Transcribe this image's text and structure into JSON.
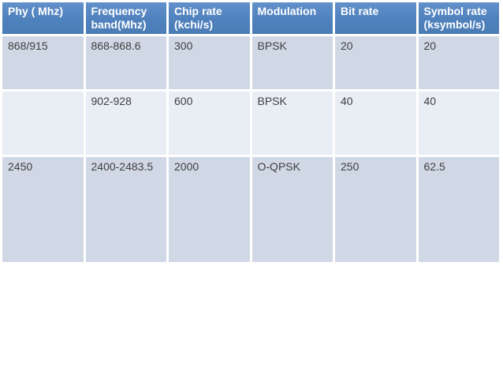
{
  "slide": {
    "background": "#ffffff"
  },
  "table": {
    "name": "phy-parameters-table",
    "style": {
      "header_bg": "#4f81bd",
      "header_text": "#ffffff",
      "band_odd": "#d0d7e5",
      "band_even": "#e9edf4",
      "body_text": "#404040",
      "separator": "#ffffff"
    },
    "columns": [
      "Phy ( Mhz)",
      "Frequency\nband(Mhz)",
      "Chip rate\n(kchi/s)",
      "Modulation",
      "Bit rate",
      "Symbol rate\n(ksymbol/s)"
    ],
    "rows": [
      {
        "band": "odd",
        "cells": [
          "868/915",
          "868-868.6",
          "300",
          "BPSK",
          "20",
          "20"
        ]
      },
      {
        "band": "even",
        "cells": [
          "",
          "902-928",
          "600",
          "BPSK",
          "40",
          "40"
        ]
      },
      {
        "band": "odd",
        "cells": [
          "2450",
          "2400-2483.5",
          "2000",
          "O-QPSK",
          "250",
          "62.5"
        ]
      }
    ]
  },
  "chart_data": {
    "type": "table",
    "columns": [
      "Phy ( Mhz)",
      "Frequency band(Mhz)",
      "Chip rate (kchi/s)",
      "Modulation",
      "Bit rate",
      "Symbol rate (ksymbol/s)"
    ],
    "rows": [
      [
        "868/915",
        "868-868.6",
        "300",
        "BPSK",
        "20",
        "20"
      ],
      [
        "",
        "902-928",
        "600",
        "BPSK",
        "40",
        "40"
      ],
      [
        "2450",
        "2400-2483.5",
        "2000",
        "O-QPSK",
        "250",
        "62.5"
      ]
    ]
  }
}
